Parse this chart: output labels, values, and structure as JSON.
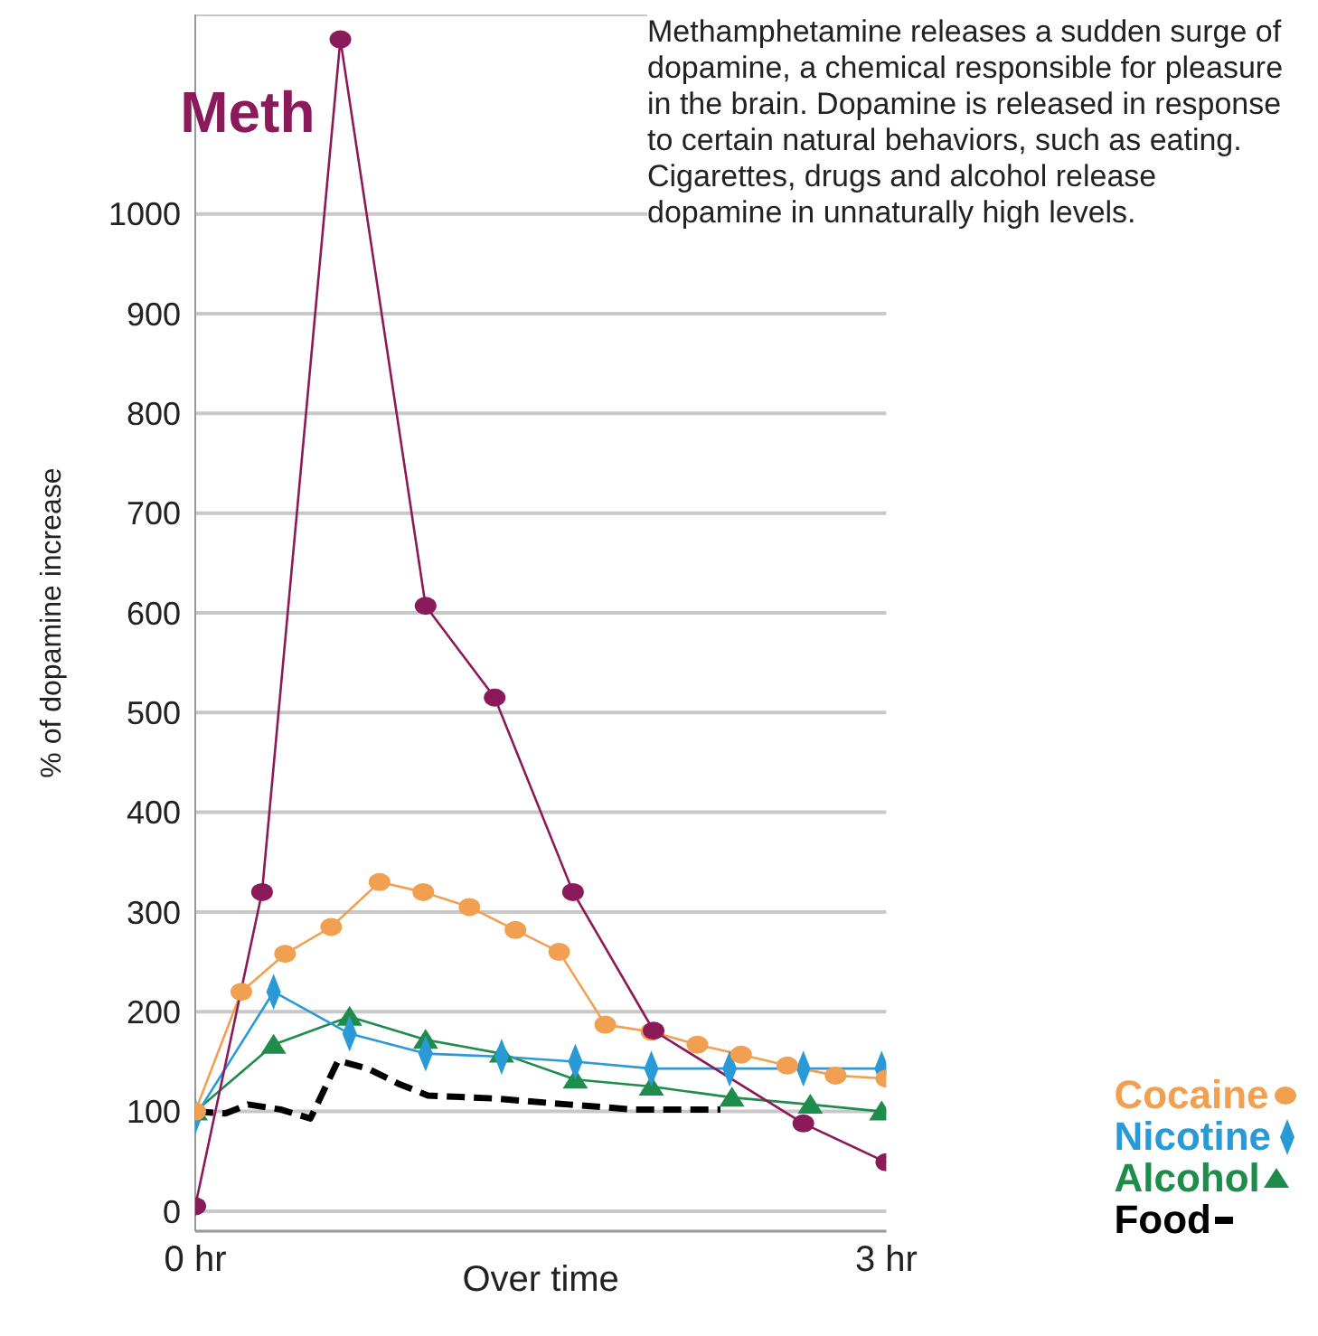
{
  "chart_data": {
    "type": "line",
    "ylabel": "% of dopamine increase",
    "xlabel": "Over time",
    "annotations": [
      "Methamphetamine releases a sudden surge of dopamine, a chemical responsible for pleasure in the brain. Dopamine is released in response to certain natural behaviors, such as eating. Cigarettes, drugs and alcohol release dopamine in unnaturally high levels."
    ],
    "xlim": [
      0,
      3
    ],
    "xticks": [
      {
        "value": 0,
        "label": "0 hr"
      },
      {
        "value": 3,
        "label": "3 hr"
      }
    ],
    "ylim": [
      -20,
      1200
    ],
    "yticks": [
      0,
      100,
      200,
      300,
      400,
      500,
      600,
      700,
      800,
      900,
      1000
    ],
    "grid": "y",
    "legend": "bottom right",
    "series": [
      {
        "name": "Meth",
        "color": "#8b1a5a",
        "marker": "circle",
        "x": [
          0,
          0.29,
          0.63,
          1.0,
          1.3,
          1.64,
          1.99,
          2.64,
          3
        ],
        "values": [
          5,
          320,
          1175,
          607,
          515,
          320,
          181,
          88,
          49
        ]
      },
      {
        "name": "Cocaine",
        "color": "#f0a050",
        "marker": "circle",
        "x": [
          0,
          0.2,
          0.39,
          0.59,
          0.8,
          0.99,
          1.19,
          1.39,
          1.58,
          1.78,
          1.98,
          2.18,
          2.37,
          2.57,
          2.78,
          3
        ],
        "values": [
          100,
          220,
          258,
          285,
          330,
          320,
          305,
          282,
          260,
          187,
          180,
          167,
          157,
          146,
          136,
          133
        ]
      },
      {
        "name": "Nicotine",
        "color": "#2a9ad6",
        "marker": "diamond",
        "x": [
          0,
          0.34,
          0.67,
          1.0,
          1.33,
          1.65,
          1.98,
          2.32,
          2.64,
          2.98
        ],
        "values": [
          95,
          220,
          178,
          158,
          155,
          150,
          143,
          143,
          143,
          143
        ]
      },
      {
        "name": "Alcohol",
        "color": "#1e8c4a",
        "marker": "triangle",
        "x": [
          0,
          0.34,
          0.67,
          1.0,
          1.33,
          1.65,
          1.98,
          2.33,
          2.67,
          2.98
        ],
        "values": [
          100,
          167,
          195,
          172,
          158,
          132,
          125,
          114,
          107,
          100
        ]
      },
      {
        "name": "Food",
        "color": "#000000",
        "marker": "none",
        "line_style": "dashed",
        "x": [
          0,
          0.13,
          0.23,
          0.37,
          0.5,
          0.62,
          0.75,
          0.88,
          1.01,
          1.3,
          1.62,
          1.9,
          2.28
        ],
        "values": [
          100,
          98,
          107,
          102,
          93,
          151,
          143,
          128,
          116,
          113,
          107,
          102,
          102
        ]
      }
    ]
  }
}
